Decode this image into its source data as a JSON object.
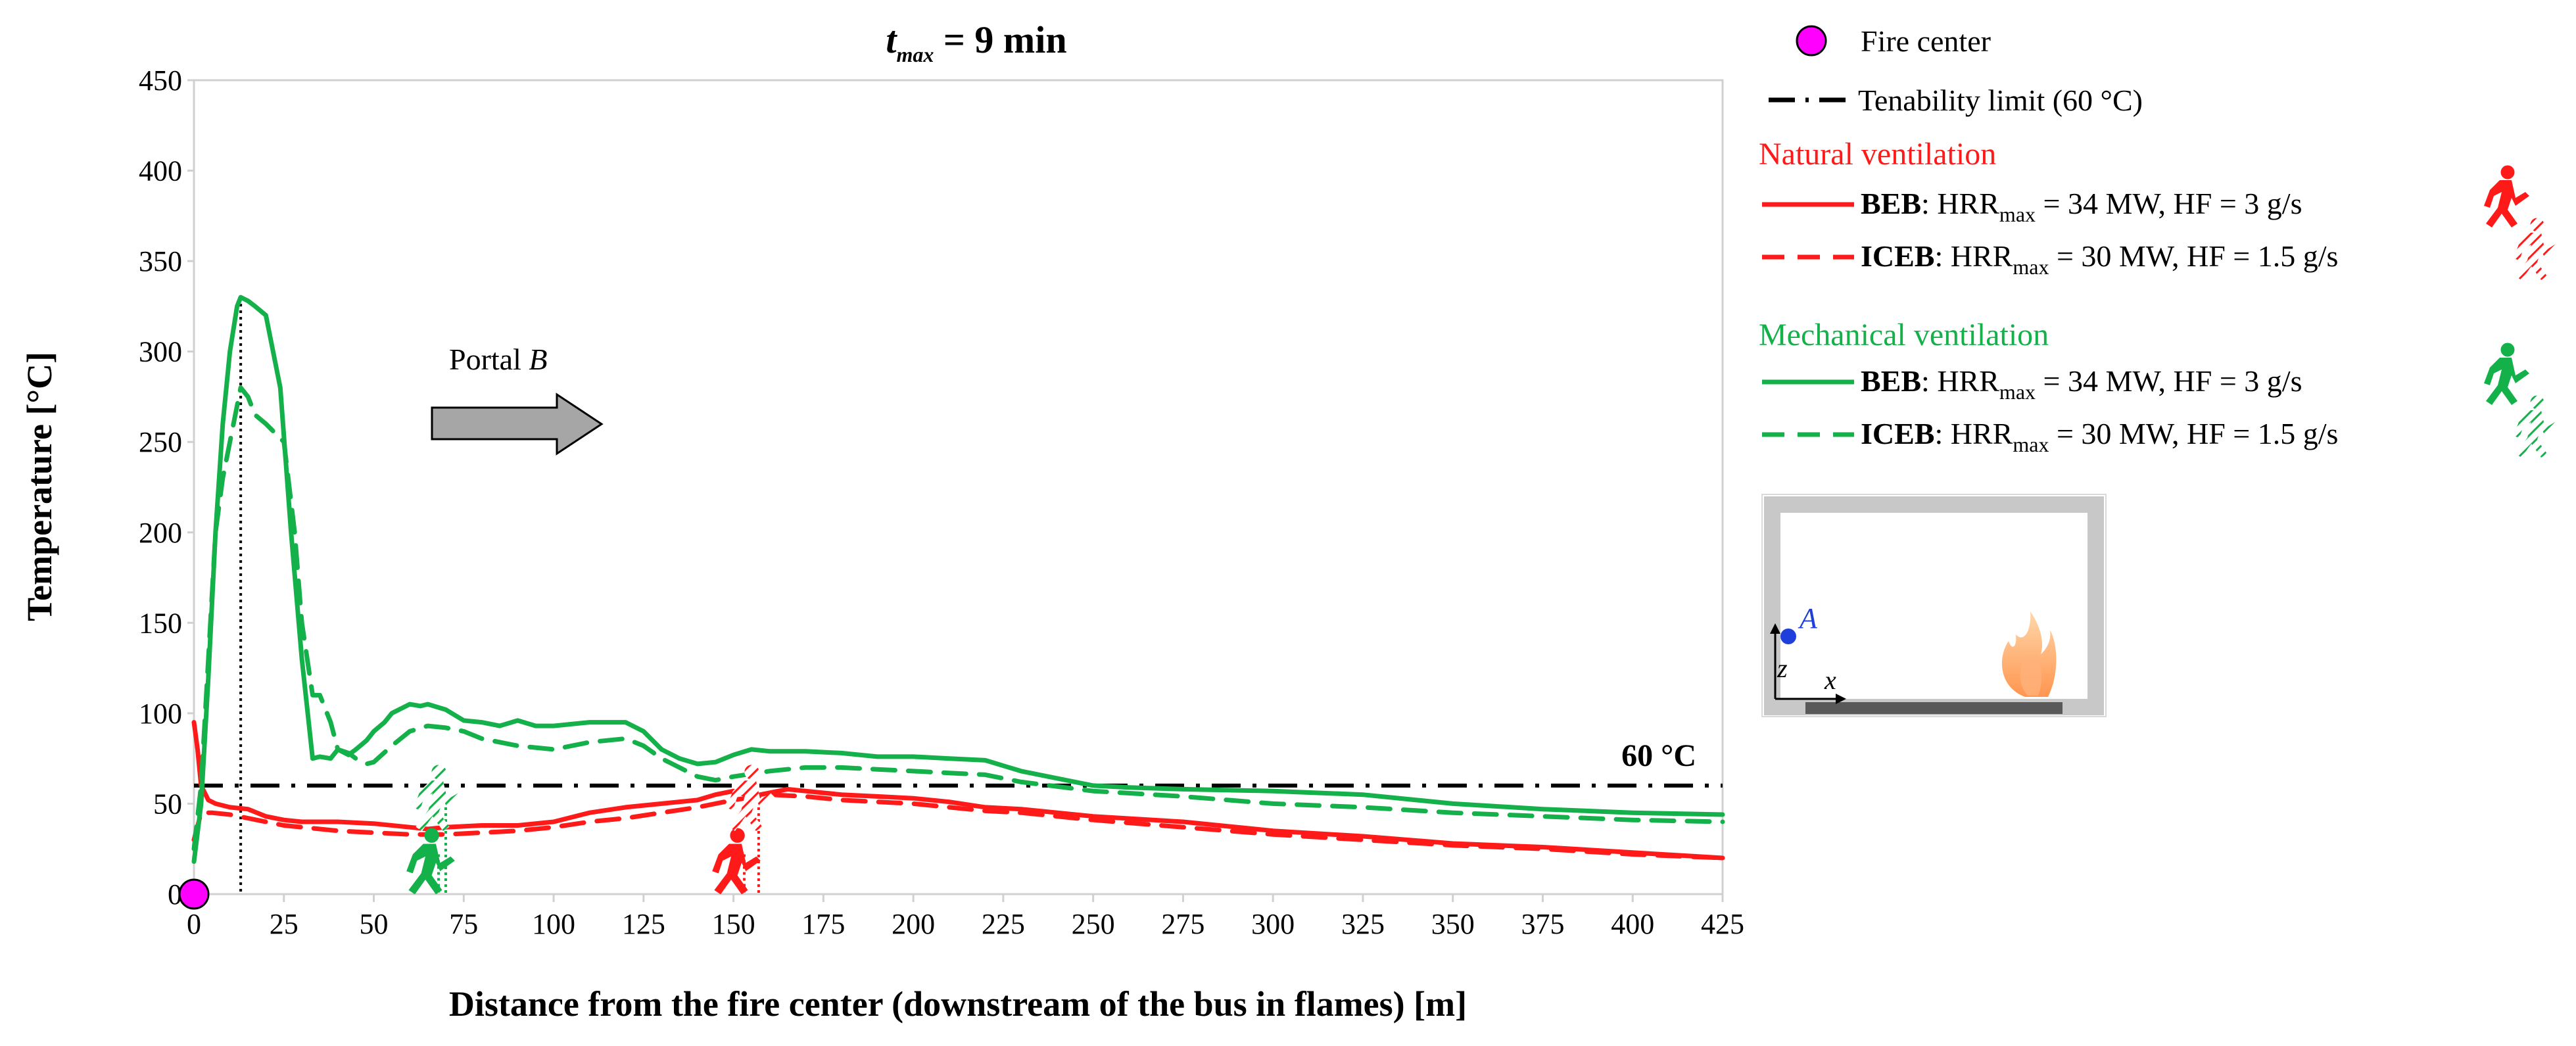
{
  "chart_data": {
    "type": "line",
    "title_prefix": "t",
    "title_sub": "max",
    "title_suffix": " = 9 min",
    "xlabel": "Distance from the fire center (downstream of the bus in flames) [m]",
    "ylabel": "Temperature [°C]",
    "xlim": [
      0,
      425
    ],
    "ylim": [
      0,
      450
    ],
    "xticks": [
      0,
      25,
      50,
      75,
      100,
      125,
      150,
      175,
      200,
      225,
      250,
      275,
      300,
      325,
      350,
      375,
      400,
      425
    ],
    "yticks": [
      0,
      50,
      100,
      150,
      200,
      250,
      300,
      350,
      400,
      450
    ],
    "threshold": {
      "value": 60,
      "label": "60 °C"
    },
    "arrow_label_prefix": "Portal ",
    "arrow_label_italic": "B",
    "peak_x": 13,
    "series": [
      {
        "name": "Natural ventilation BEB",
        "color": "#ff1a1a",
        "dash": "solid",
        "x": [
          0,
          1,
          2,
          4,
          6,
          10,
          15,
          20,
          25,
          30,
          40,
          50,
          60,
          65,
          70,
          80,
          90,
          100,
          110,
          120,
          130,
          140,
          145,
          150,
          155,
          160,
          165,
          170,
          180,
          190,
          200,
          210,
          220,
          230,
          250,
          275,
          300,
          325,
          350,
          375,
          400,
          425
        ],
        "y": [
          95,
          80,
          60,
          52,
          50,
          48,
          47,
          43,
          41,
          40,
          40,
          39,
          37,
          36,
          37,
          38,
          38,
          40,
          45,
          48,
          50,
          52,
          55,
          57,
          54,
          56,
          58,
          57,
          55,
          54,
          53,
          51,
          48,
          47,
          43,
          40,
          35,
          32,
          28,
          26,
          23,
          20
        ]
      },
      {
        "name": "Natural ventilation ICEB",
        "color": "#ff1a1a",
        "dash": "dashed",
        "x": [
          0,
          2,
          5,
          10,
          15,
          20,
          25,
          30,
          40,
          50,
          60,
          70,
          80,
          90,
          100,
          110,
          120,
          130,
          140,
          150,
          160,
          170,
          180,
          190,
          200,
          210,
          220,
          230,
          250,
          275,
          300,
          325,
          350,
          375,
          400,
          425
        ],
        "y": [
          30,
          45,
          45,
          44,
          42,
          40,
          38,
          37,
          35,
          34,
          33,
          33,
          34,
          35,
          37,
          40,
          42,
          45,
          48,
          52,
          55,
          54,
          52,
          51,
          50,
          48,
          46,
          45,
          41,
          37,
          33,
          30,
          27,
          25,
          22,
          20
        ]
      },
      {
        "name": "Mechanical ventilation BEB",
        "color": "#14b04a",
        "dash": "solid",
        "x": [
          0,
          2,
          4,
          6,
          8,
          10,
          12,
          13,
          15,
          17,
          20,
          24,
          27,
          30,
          33,
          35,
          38,
          40,
          43,
          45,
          48,
          50,
          53,
          55,
          58,
          60,
          63,
          65,
          70,
          75,
          80,
          85,
          90,
          95,
          100,
          110,
          120,
          125,
          130,
          135,
          140,
          145,
          150,
          155,
          160,
          170,
          180,
          190,
          200,
          210,
          220,
          225,
          230,
          240,
          250,
          260,
          275,
          300,
          325,
          350,
          375,
          400,
          425
        ],
        "y": [
          18,
          50,
          120,
          200,
          260,
          300,
          325,
          330,
          328,
          325,
          320,
          280,
          200,
          130,
          75,
          76,
          75,
          80,
          77,
          80,
          85,
          90,
          95,
          100,
          103,
          105,
          104,
          105,
          102,
          96,
          95,
          93,
          96,
          93,
          93,
          95,
          95,
          90,
          80,
          75,
          72,
          73,
          77,
          80,
          79,
          79,
          78,
          76,
          76,
          75,
          74,
          71,
          68,
          64,
          60,
          59,
          58,
          57,
          55,
          50,
          47,
          45,
          44
        ]
      },
      {
        "name": "Mechanical ventilation ICEB",
        "color": "#14b04a",
        "dash": "dashed",
        "x": [
          0,
          2,
          4,
          6,
          8,
          10,
          12,
          13,
          15,
          17,
          20,
          25,
          28,
          30,
          33,
          35,
          38,
          40,
          43,
          45,
          48,
          50,
          55,
          60,
          65,
          70,
          75,
          80,
          90,
          100,
          110,
          120,
          125,
          130,
          135,
          140,
          145,
          150,
          160,
          170,
          180,
          190,
          200,
          210,
          220,
          225,
          230,
          250,
          275,
          300,
          325,
          350,
          375,
          400,
          425
        ],
        "y": [
          25,
          60,
          130,
          200,
          230,
          250,
          270,
          280,
          275,
          265,
          260,
          250,
          200,
          150,
          110,
          110,
          95,
          80,
          78,
          75,
          72,
          73,
          82,
          90,
          93,
          92,
          90,
          86,
          82,
          80,
          84,
          86,
          82,
          75,
          70,
          65,
          63,
          65,
          68,
          70,
          70,
          69,
          68,
          67,
          66,
          64,
          62,
          57,
          54,
          50,
          48,
          45,
          43,
          41,
          40
        ]
      }
    ]
  },
  "legend": {
    "fire_center": "Fire center",
    "tenability": "Tenability limit (60 °C)",
    "natural_group": "Natural ventilation",
    "mechanical_group": "Mechanical ventilation",
    "entries": [
      {
        "bold": "BEB",
        "rest_a": ": HRR",
        "sub": "max",
        "rest_b": " = 34 MW, HF = 3 g/s",
        "color": "#ff1a1a",
        "dash": "solid",
        "icon": "runner-red-solid-icon"
      },
      {
        "bold": "ICEB",
        "rest_a": ": HRR",
        "sub": "max",
        "rest_b": " = 30 MW, HF = 1.5 g/s",
        "color": "#ff1a1a",
        "dash": "dashed",
        "icon": "runner-red-hatched-icon"
      },
      {
        "bold": "BEB",
        "rest_a": ": HRR",
        "sub": "max",
        "rest_b": " = 34 MW, HF = 3 g/s",
        "color": "#14b04a",
        "dash": "solid",
        "icon": "runner-green-solid-icon"
      },
      {
        "bold": "ICEB",
        "rest_a": ": HRR",
        "sub": "max",
        "rest_b": " = 30 MW, HF = 1.5 g/s",
        "color": "#14b04a",
        "dash": "dashed",
        "icon": "runner-green-hatched-icon"
      }
    ]
  },
  "inset": {
    "point_label": "A",
    "axis_z": "z",
    "axis_x": "x"
  },
  "escape_markers": [
    {
      "name": "escape-marker-green-beb",
      "x": 68,
      "color": "#14b04a",
      "hatched": false
    },
    {
      "name": "escape-marker-green-iceb",
      "x": 70,
      "color": "#14b04a",
      "hatched": true
    },
    {
      "name": "escape-marker-red-beb",
      "x": 153,
      "color": "#ff1a1a",
      "hatched": false
    },
    {
      "name": "escape-marker-red-iceb",
      "x": 157,
      "color": "#ff1a1a",
      "hatched": true
    }
  ]
}
